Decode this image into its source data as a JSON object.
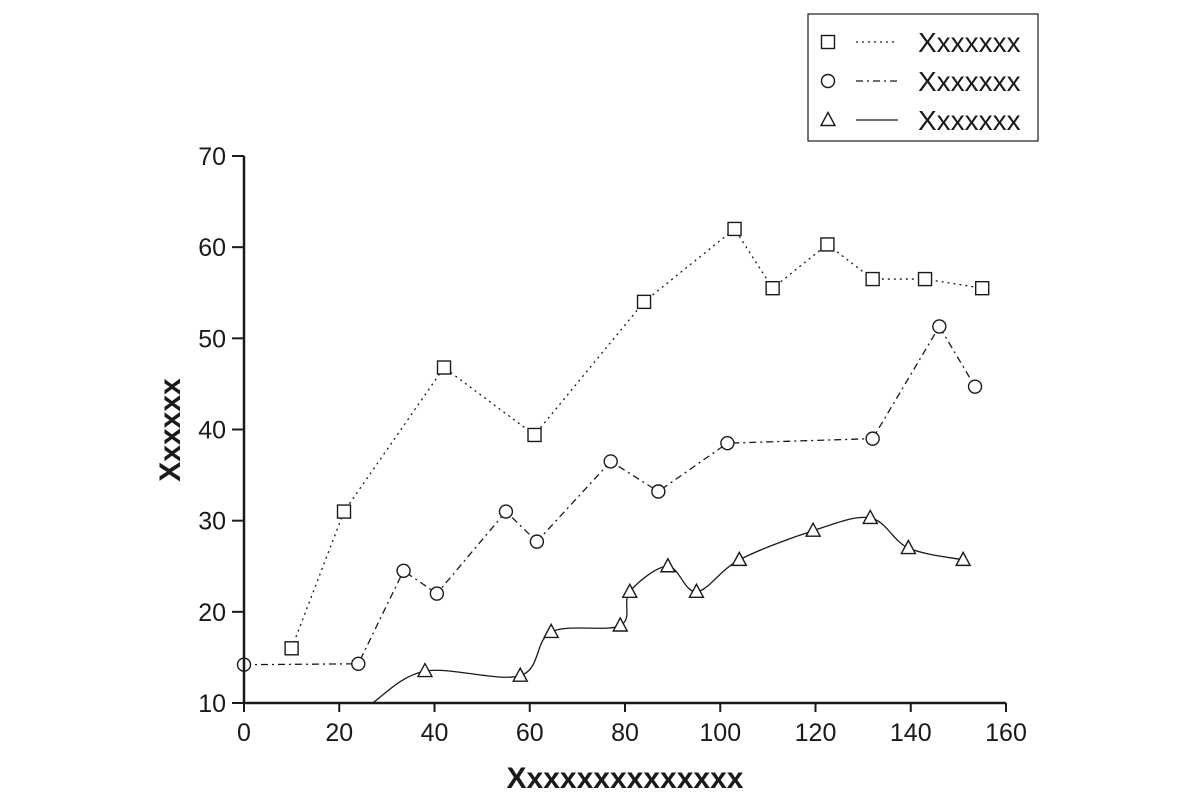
{
  "chart_data": {
    "type": "line",
    "title": "",
    "xlabel": "Xxxxxxxxxxxxxx",
    "ylabel": "Xxxxxx",
    "xlim": [
      0,
      160
    ],
    "ylim": [
      10,
      70
    ],
    "xticks": [
      0,
      20,
      40,
      60,
      80,
      100,
      120,
      140,
      160
    ],
    "yticks": [
      10,
      20,
      30,
      40,
      50,
      60,
      70
    ],
    "grid": false,
    "legend_position": "top-right",
    "series": [
      {
        "name": "Xxxxxxx",
        "marker": "square",
        "line_style": "dotted",
        "points": [
          [
            10,
            16
          ],
          [
            21,
            31
          ],
          [
            42,
            46.8
          ],
          [
            61,
            39.4
          ],
          [
            84,
            54
          ],
          [
            103,
            62
          ],
          [
            111,
            55.5
          ],
          [
            122.5,
            60.3
          ],
          [
            132,
            56.5
          ],
          [
            143,
            56.5
          ],
          [
            155,
            55.5
          ]
        ]
      },
      {
        "name": "Xxxxxxx",
        "marker": "circle",
        "line_style": "dash-dot",
        "points": [
          [
            0,
            14.2
          ],
          [
            24,
            14.3
          ],
          [
            33.5,
            24.5
          ],
          [
            40.5,
            22
          ],
          [
            55,
            31
          ],
          [
            61.5,
            27.7
          ],
          [
            77,
            36.5
          ],
          [
            87,
            33.2
          ],
          [
            101.5,
            38.5
          ],
          [
            132,
            39
          ],
          [
            146,
            51.3
          ],
          [
            153.5,
            44.7
          ]
        ]
      },
      {
        "name": "Xxxxxxx",
        "marker": "triangle",
        "line_style": "solid-smooth",
        "points": [
          [
            27,
            10
          ],
          [
            38,
            13.5
          ],
          [
            58,
            13
          ],
          [
            64.5,
            17.8
          ],
          [
            79,
            18.5
          ],
          [
            81,
            22.2
          ],
          [
            89,
            25
          ],
          [
            95,
            22.2
          ],
          [
            104,
            25.7
          ],
          [
            119.5,
            28.9
          ],
          [
            131.5,
            30.3
          ],
          [
            139.5,
            27
          ],
          [
            151,
            25.7
          ]
        ]
      }
    ]
  }
}
